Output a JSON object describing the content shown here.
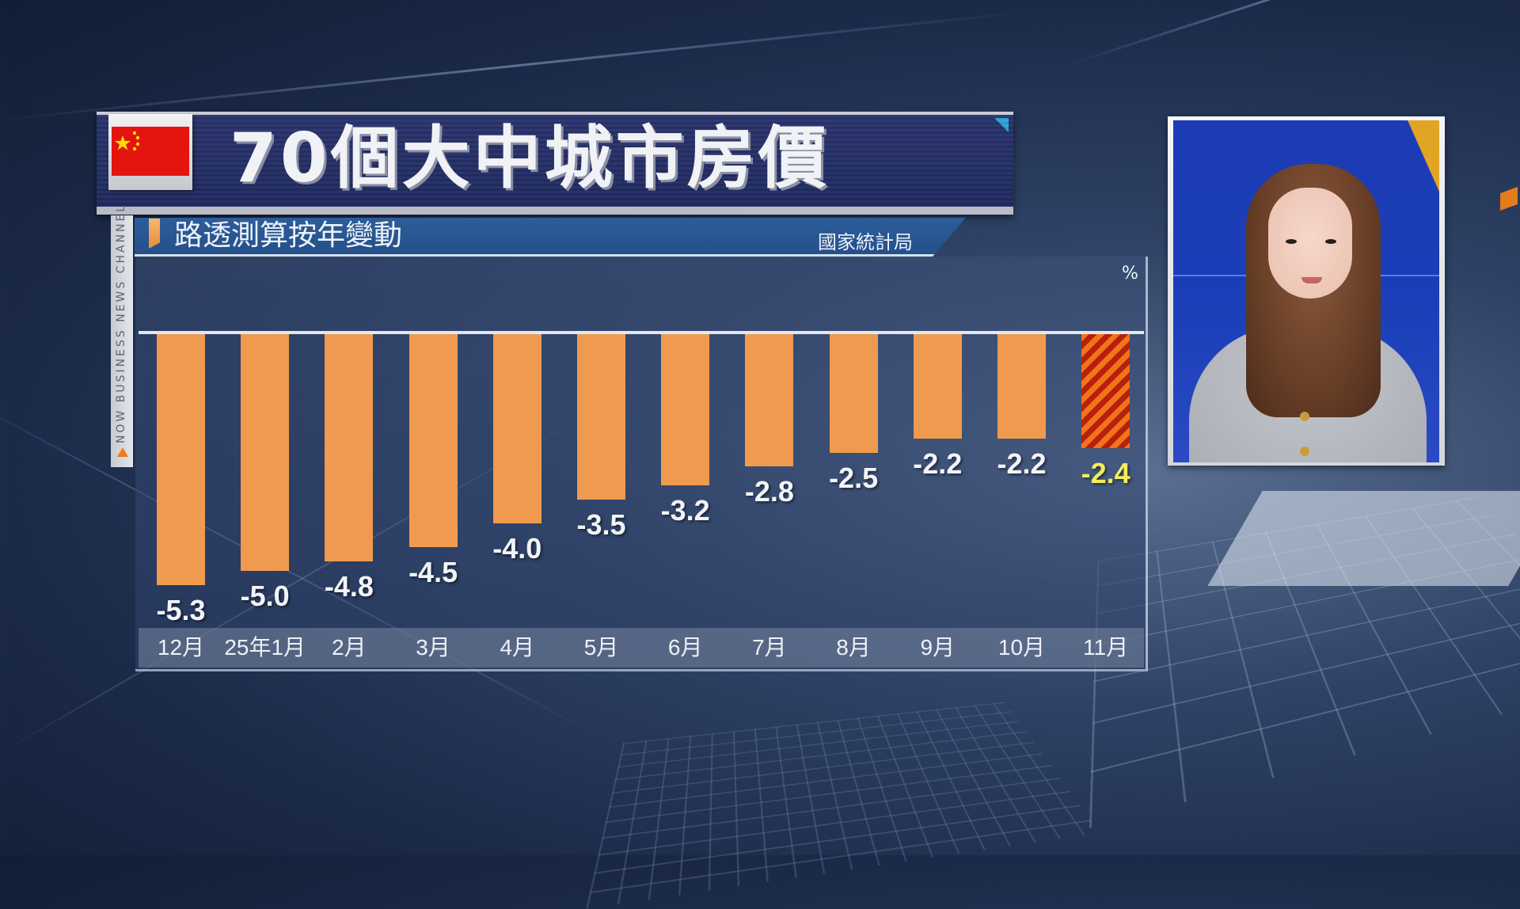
{
  "broadcast": {
    "channel_strip_text": "NOW BUSINESS NEWS CHANNEL"
  },
  "header": {
    "title": "70個大中城市房價",
    "flag_icon": "china-flag-icon",
    "subtitle": "路透測算按年變動",
    "source": "國家統計局"
  },
  "colors": {
    "bar": "#ef9a4e",
    "bar_latest_stripe_a": "#f07418",
    "bar_latest_stripe_b": "#b81f10",
    "highlight_label": "#f4ec5a",
    "title_banner": "#1f2a60",
    "subheader": "#2c5d9a"
  },
  "chart_data": {
    "type": "bar",
    "title": "70個大中城市房價",
    "subtitle": "路透測算按年變動",
    "source": "國家統計局",
    "unit": "%",
    "categories": [
      "12月",
      "25年1月",
      "2月",
      "3月",
      "4月",
      "5月",
      "6月",
      "7月",
      "8月",
      "9月",
      "10月",
      "11月"
    ],
    "values": [
      -5.3,
      -5.0,
      -4.8,
      -4.5,
      -4.0,
      -3.5,
      -3.2,
      -2.8,
      -2.5,
      -2.2,
      -2.2,
      -2.4
    ],
    "value_labels": [
      "-5.3",
      "-5.0",
      "-4.8",
      "-4.5",
      "-4.0",
      "-3.5",
      "-3.2",
      "-2.8",
      "-2.5",
      "-2.2",
      "-2.2",
      "-2.4"
    ],
    "highlight_index": 11,
    "xlabel": "",
    "ylabel": "%",
    "ylim": [
      -6,
      0
    ],
    "grid": false,
    "legend": null
  },
  "presenter": {
    "label": "presenter-video-inset"
  }
}
